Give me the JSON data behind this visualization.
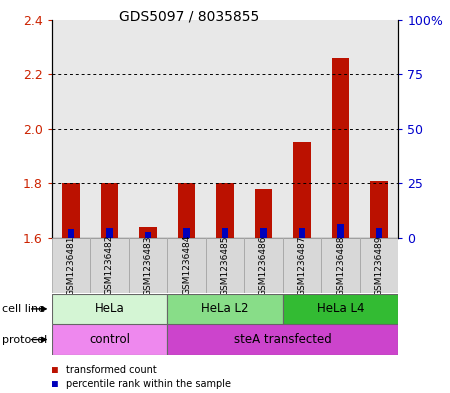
{
  "title": "GDS5097 / 8035855",
  "samples": [
    "GSM1236481",
    "GSM1236482",
    "GSM1236483",
    "GSM1236484",
    "GSM1236485",
    "GSM1236486",
    "GSM1236487",
    "GSM1236488",
    "GSM1236489"
  ],
  "red_values": [
    1.8,
    1.8,
    1.64,
    1.8,
    1.8,
    1.78,
    1.95,
    2.26,
    1.81
  ],
  "blue_values": [
    4.0,
    4.5,
    2.5,
    4.5,
    4.5,
    4.5,
    4.5,
    6.5,
    4.5
  ],
  "ymin": 1.6,
  "ymax": 2.4,
  "yticks_left": [
    1.6,
    1.8,
    2.0,
    2.2,
    2.4
  ],
  "yticks_right": [
    0,
    25,
    50,
    75,
    100
  ],
  "cell_line_groups": [
    {
      "label": "HeLa",
      "start": 0,
      "end": 3,
      "color": "#d4f5d4"
    },
    {
      "label": "HeLa L2",
      "start": 3,
      "end": 6,
      "color": "#88dd88"
    },
    {
      "label": "HeLa L4",
      "start": 6,
      "end": 9,
      "color": "#33bb33"
    }
  ],
  "protocol_groups": [
    {
      "label": "control",
      "start": 0,
      "end": 3,
      "color": "#ee88ee"
    },
    {
      "label": "steA transfected",
      "start": 3,
      "end": 9,
      "color": "#cc44cc"
    }
  ],
  "bar_width": 0.45,
  "blue_bar_width": 0.18,
  "red_color": "#bb1100",
  "blue_color": "#0000bb",
  "left_axis_color": "#cc2200",
  "right_axis_color": "#0000cc",
  "tick_label_bg": "#d8d8d8",
  "legend_red": "transformed count",
  "legend_blue": "percentile rank within the sample"
}
